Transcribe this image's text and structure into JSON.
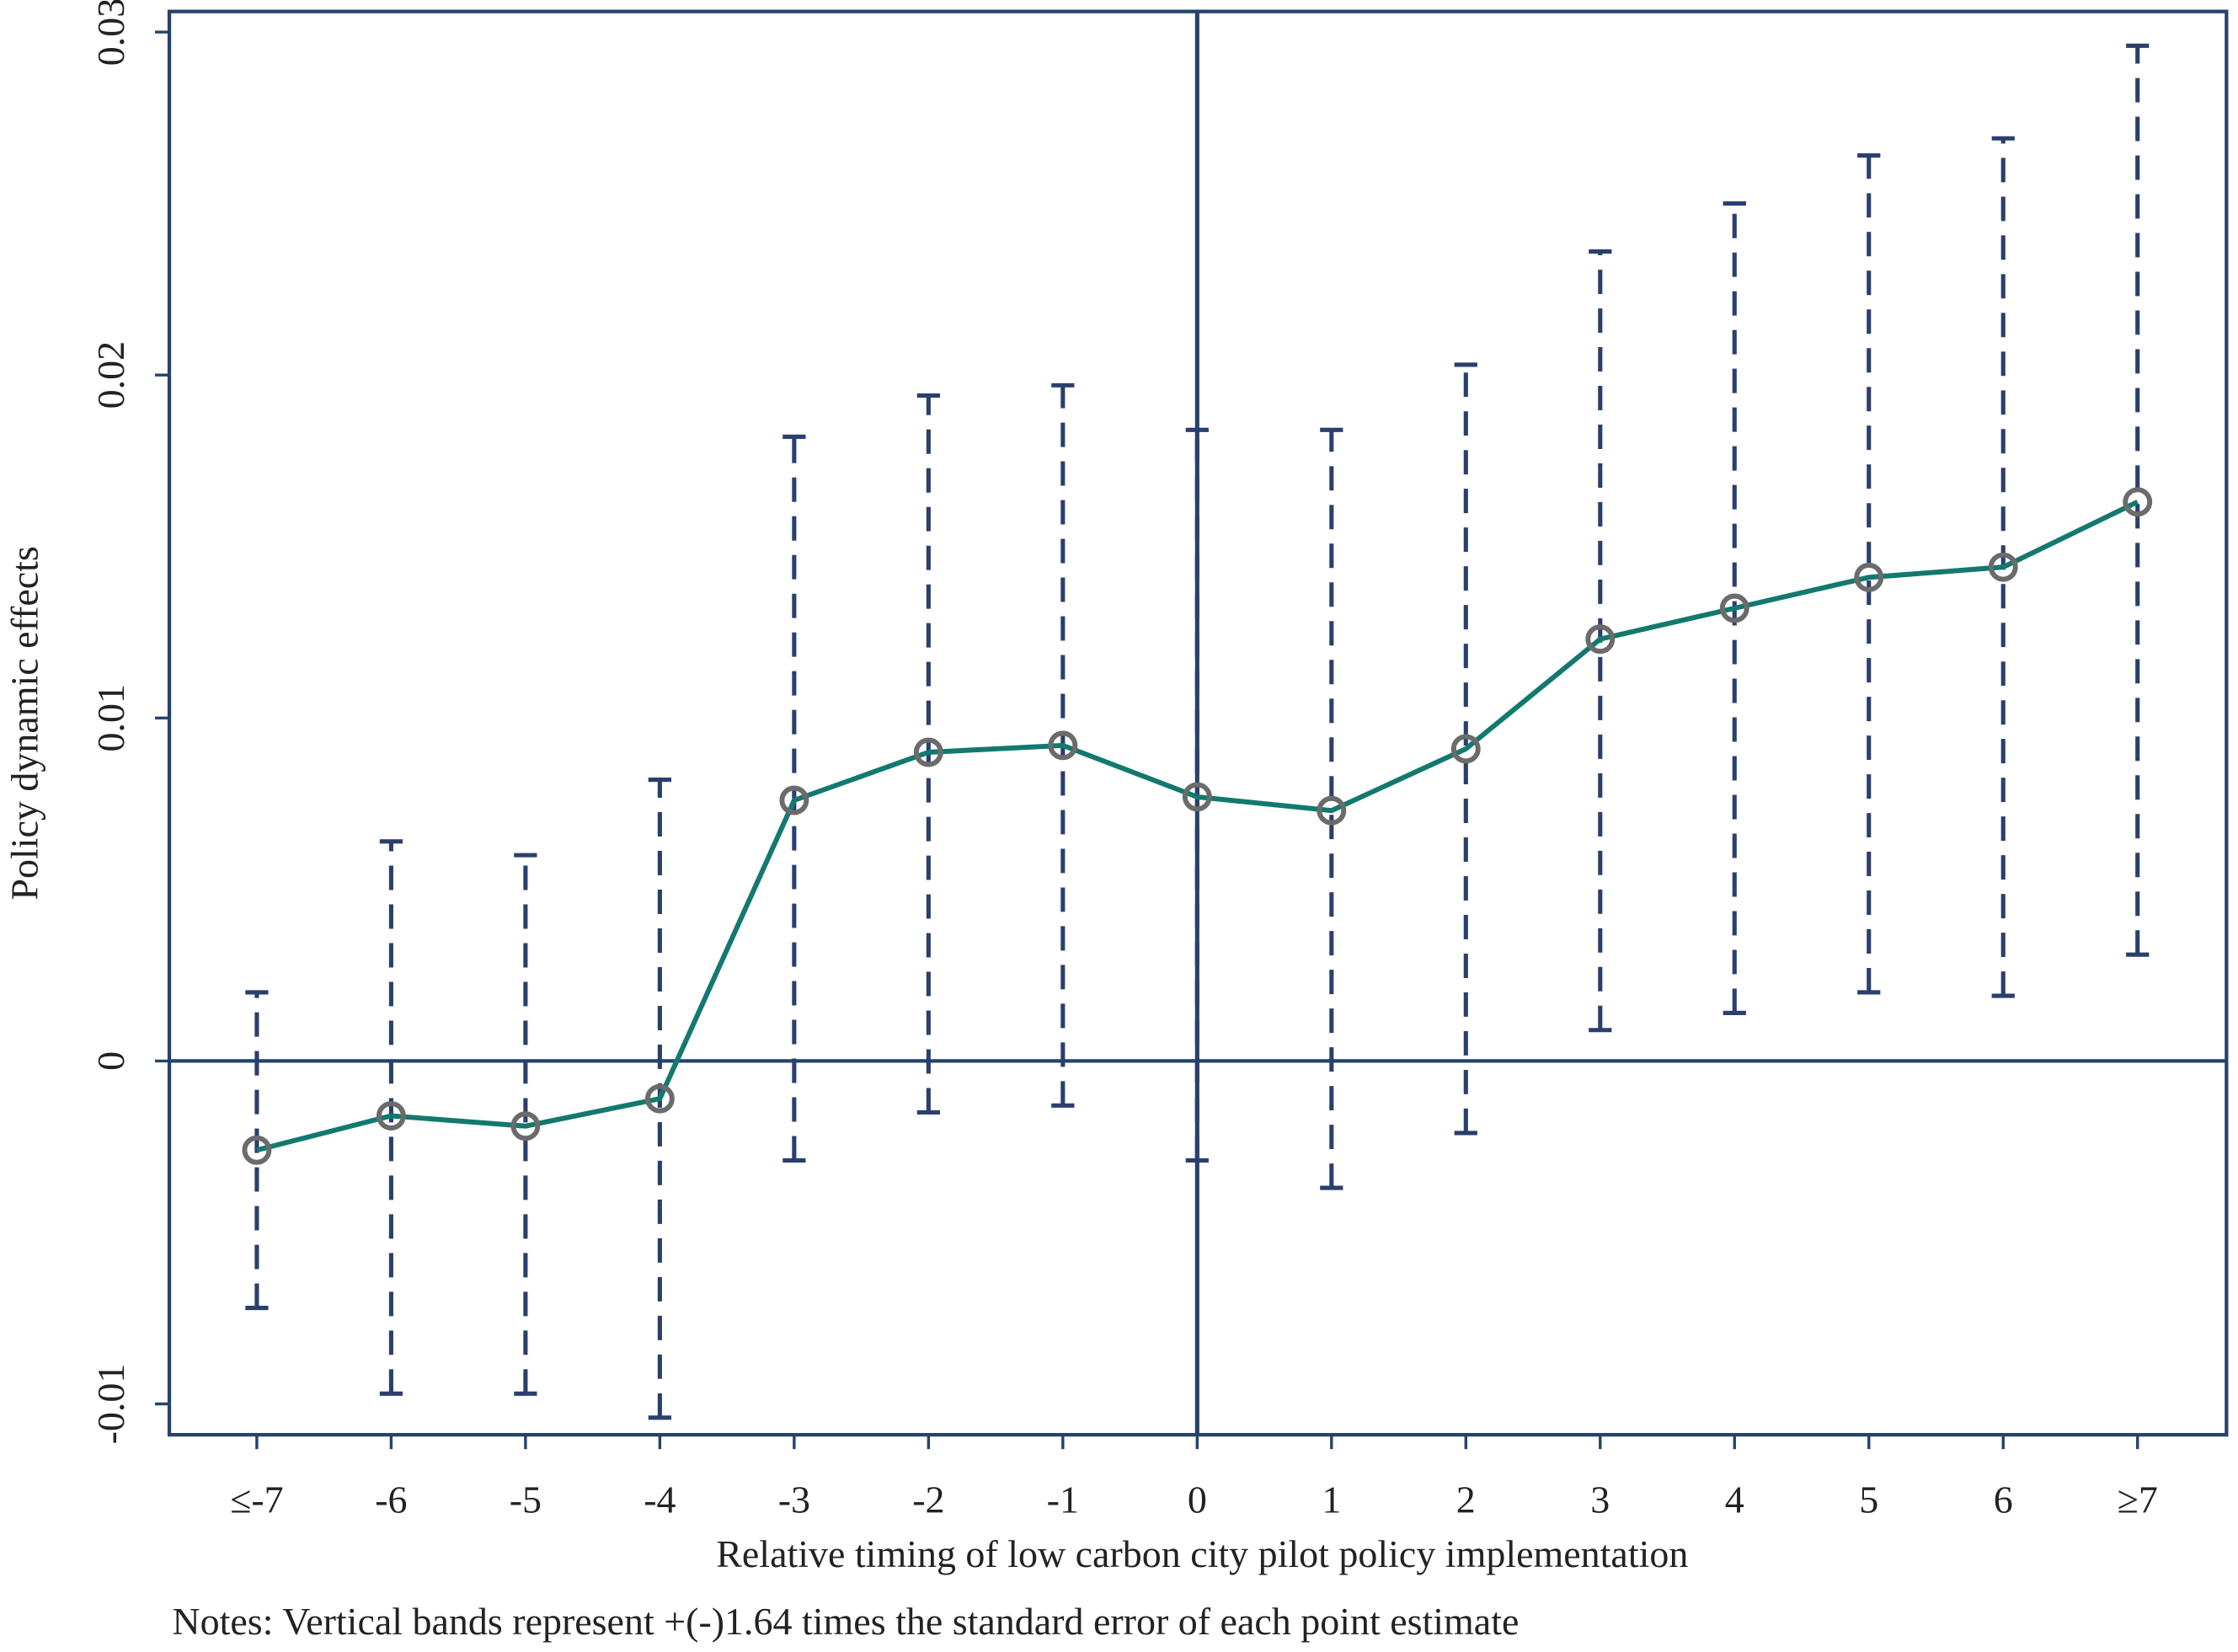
{
  "chart_data": {
    "type": "line",
    "x_label": "Relative timing of low carbon city pilot policy implementation",
    "y_label": "Policy dynamic effects",
    "note": "Notes: Vertical bands represent +(-)1.64 times the standard error of each point estimate",
    "categories": [
      "≤-7",
      "-6",
      "-5",
      "-4",
      "-3",
      "-2",
      "-1",
      "0",
      "1",
      "2",
      "3",
      "4",
      "5",
      "6",
      "≥7"
    ],
    "values": [
      -0.0026,
      -0.0016,
      -0.0019,
      -0.0011,
      0.0076,
      0.009,
      0.0092,
      0.0077,
      0.0073,
      0.0091,
      0.0123,
      0.0132,
      0.0141,
      0.0144,
      0.0163
    ],
    "lower": [
      -0.0072,
      -0.0097,
      -0.0097,
      -0.0104,
      -0.0029,
      -0.0015,
      -0.0013,
      -0.0029,
      -0.0037,
      -0.0021,
      0.0009,
      0.0014,
      0.002,
      0.0019,
      0.0031
    ],
    "upper": [
      0.002,
      0.0064,
      0.006,
      0.0082,
      0.0182,
      0.0194,
      0.0197,
      0.0184,
      0.0184,
      0.0203,
      0.0236,
      0.025,
      0.0264,
      0.0269,
      0.0296
    ],
    "color": "#13796f",
    "marker_color": "#6b6b6b",
    "error_color": "#2b3f6e",
    "axis_color": "#24436b",
    "ylim": [
      -0.0109,
      0.0306
    ],
    "yticks": [
      -0.01,
      0,
      0.01,
      0.02,
      0.03
    ],
    "hline": 0,
    "vline": "0",
    "grid": false
  }
}
